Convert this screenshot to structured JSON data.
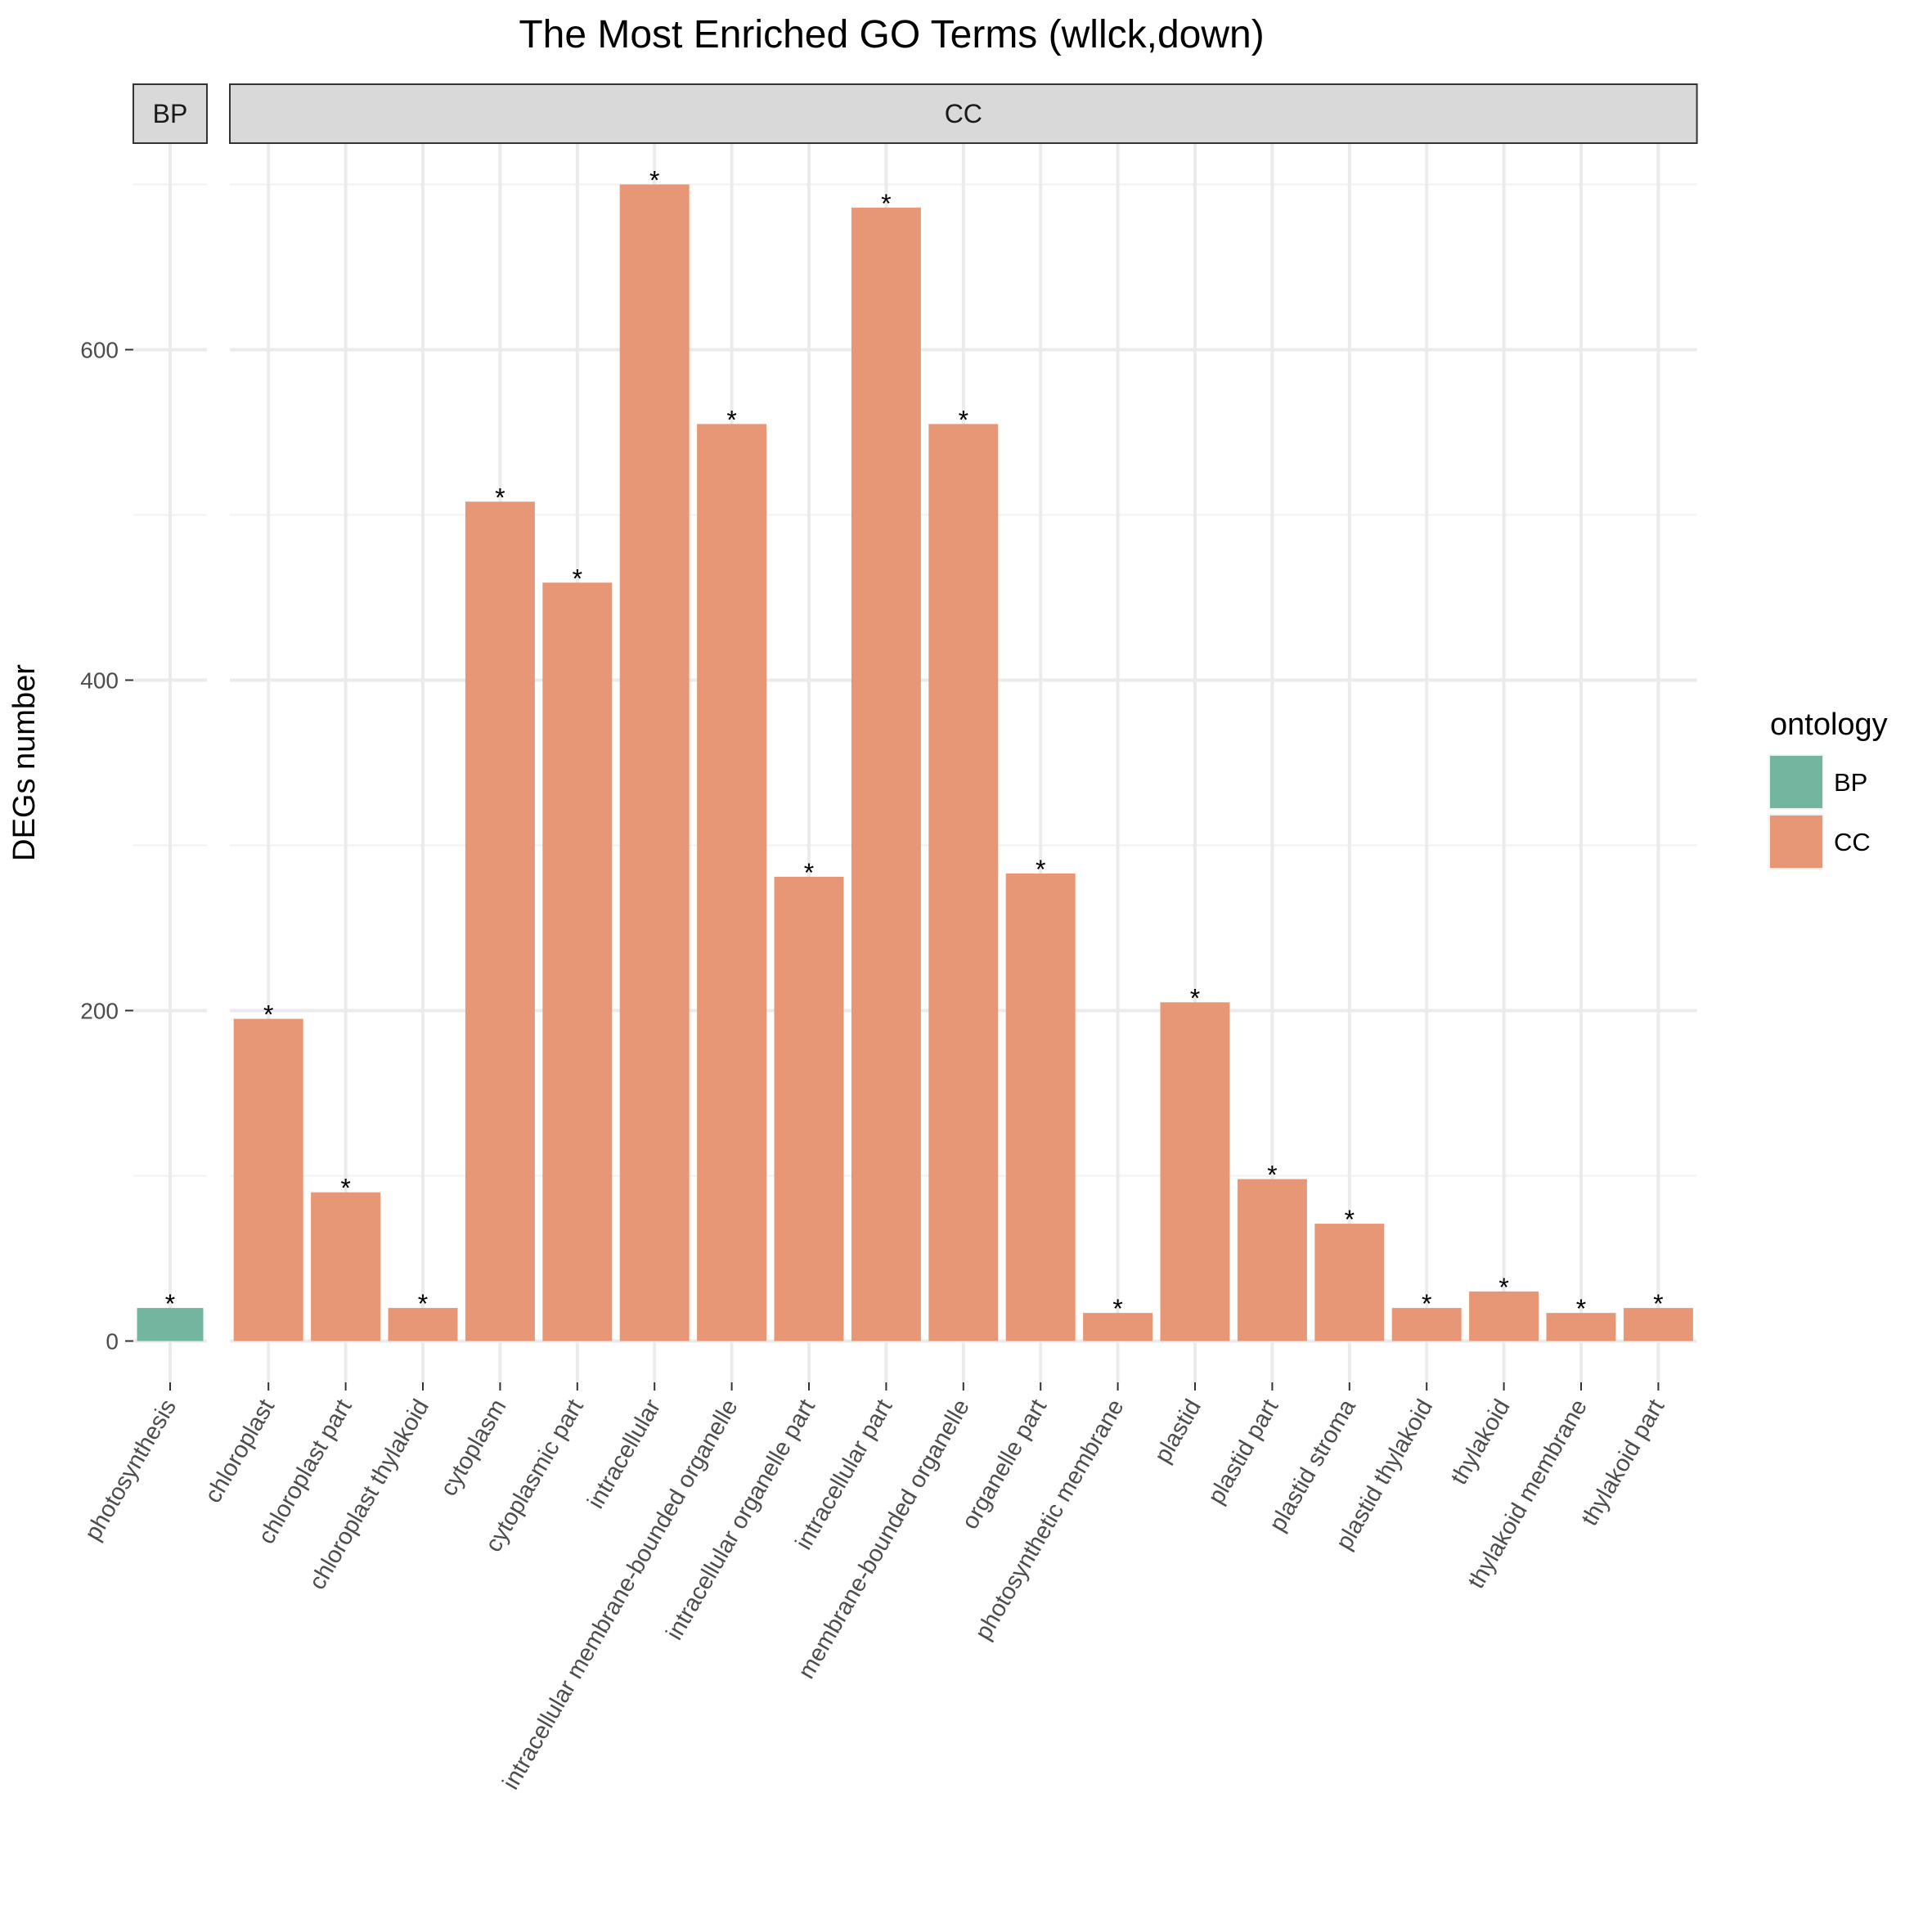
{
  "chart_data": {
    "type": "bar",
    "title": "The Most Enriched GO Terms (wllck,down)",
    "xlabel": "",
    "ylabel": "DEGs number",
    "ylim": [
      0,
      700
    ],
    "y_ticks": [
      0,
      200,
      400,
      600
    ],
    "grid": true,
    "legend": {
      "title": "ontology",
      "placement": "right",
      "entries": [
        {
          "label": "BP",
          "color": "#72b6a0"
        },
        {
          "label": "CC",
          "color": "#e79776"
        }
      ]
    },
    "facets": [
      {
        "label": "BP",
        "color": "#72b6a0",
        "categories": [
          "photosynthesis"
        ],
        "values": [
          20
        ],
        "annotations": [
          "*"
        ]
      },
      {
        "label": "CC",
        "color": "#e79776",
        "categories": [
          "chloroplast",
          "chloroplast part",
          "chloroplast thylakoid",
          "cytoplasm",
          "cytoplasmic part",
          "intracellular",
          "intracellular membrane-bounded organelle",
          "intracellular organelle part",
          "intracellular part",
          "membrane-bounded organelle",
          "organelle part",
          "photosynthetic membrane",
          "plastid",
          "plastid part",
          "plastid stroma",
          "plastid thylakoid",
          "thylakoid",
          "thylakoid membrane",
          "thylakoid part"
        ],
        "values": [
          195,
          90,
          20,
          508,
          459,
          700,
          555,
          281,
          686,
          555,
          283,
          17,
          205,
          98,
          71,
          20,
          30,
          17,
          20
        ],
        "annotations": [
          "*",
          "*",
          "*",
          "*",
          "*",
          "*",
          "*",
          "*",
          "*",
          "*",
          "*",
          "*",
          "*",
          "*",
          "*",
          "*",
          "*",
          "*",
          "*"
        ]
      }
    ]
  }
}
